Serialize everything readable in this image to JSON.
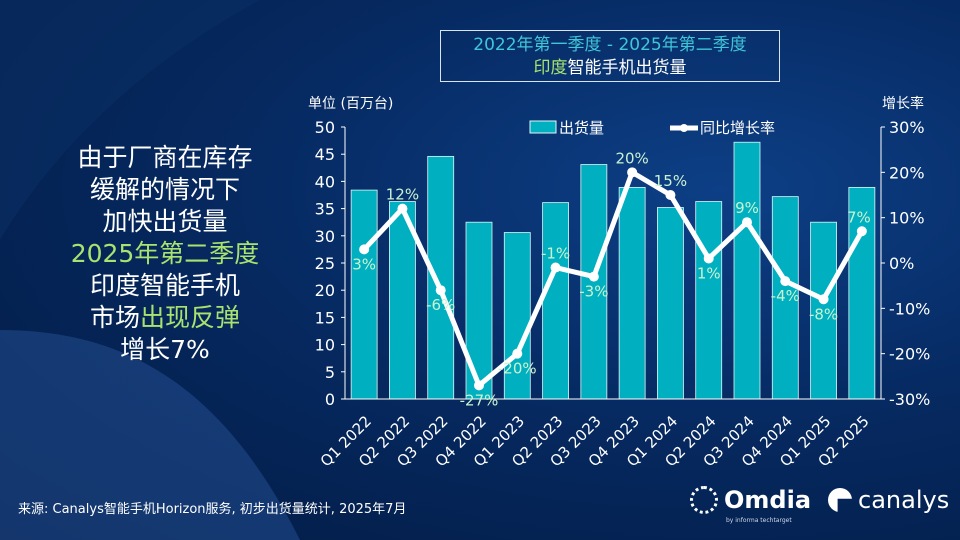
{
  "headline": {
    "l1": "由于厂商在库存",
    "l2": "缓解的情况下",
    "l3": "加快出货量",
    "l4": "2025年第二季度",
    "l5": "印度智能手机",
    "l6a": "市场",
    "l6b": "出现反弹",
    "l7": "增长7%"
  },
  "title_box": {
    "line1": "2022年第一季度 - 2025年第二季度",
    "line2a": "印度",
    "line2b": "智能手机出货量"
  },
  "source": "来源: Canalys智能手机Horizon服务, 初步出货量统计, 2025年7月",
  "logos": {
    "omdia": "Omdia",
    "omdia_sub": "by informa techtarget",
    "canalys": "canalys"
  },
  "colors": {
    "bar": "#00b0c0",
    "line": "#ffffff",
    "label": "#c9f2d0",
    "accent_green": "#a8e36f",
    "title_cyan": "#3fc6d9"
  },
  "chart_data": {
    "type": "bar+line",
    "categories": [
      "Q1 2022",
      "Q2 2022",
      "Q3 2022",
      "Q4 2022",
      "Q1 2023",
      "Q2 2023",
      "Q3 2023",
      "Q4 2023",
      "Q1 2024",
      "Q2 2024",
      "Q3 2024",
      "Q4 2024",
      "Q1 2025",
      "Q2 2025"
    ],
    "series": [
      {
        "name": "出货量",
        "type": "bar",
        "axis": "left",
        "values": [
          38.4,
          36.3,
          44.6,
          32.5,
          30.6,
          36.1,
          43.1,
          38.9,
          35.2,
          36.3,
          47.2,
          37.2,
          32.5,
          38.9
        ]
      },
      {
        "name": "同比增长率",
        "type": "line",
        "axis": "right",
        "values": [
          3,
          12,
          -6,
          -27,
          -20,
          -1,
          -3,
          20,
          15,
          1,
          9,
          -4,
          -8,
          7
        ],
        "labels": [
          "3%",
          "12%",
          "-6%",
          "-27%",
          "-20%",
          "-1%",
          "-3%",
          "20%",
          "15%",
          "1%",
          "9%",
          "-4%",
          "-8%",
          "7%"
        ]
      }
    ],
    "ylabel": "单位 (百万台)",
    "y2label": "增长率",
    "ylim": [
      0,
      50
    ],
    "yticks": [
      "0",
      "5",
      "10",
      "15",
      "20",
      "25",
      "30",
      "35",
      "40",
      "45",
      "50"
    ],
    "y2lim": [
      -30,
      30
    ],
    "y2ticks": [
      "-30%",
      "-20%",
      "-10%",
      "0%",
      "10%",
      "20%",
      "30%"
    ],
    "legend": "top",
    "grid": false
  }
}
